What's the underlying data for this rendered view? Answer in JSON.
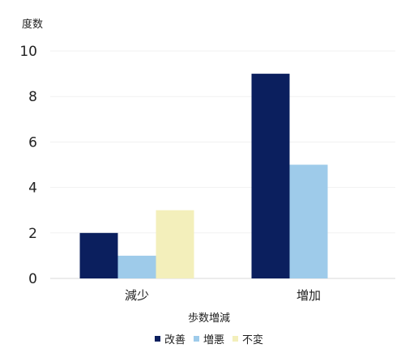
{
  "chart_data": {
    "type": "bar",
    "ylabel": "度数",
    "xlabel": "歩数増減",
    "categories": [
      "減少",
      "増加"
    ],
    "ylim": [
      0,
      10
    ],
    "yticks": [
      0,
      2,
      4,
      6,
      8,
      10
    ],
    "grid": true,
    "legend_position": "bottom",
    "series": [
      {
        "name": "改善",
        "color": "#0b1f5e",
        "values": [
          2,
          9
        ]
      },
      {
        "name": "増悪",
        "color": "#9ecbea",
        "values": [
          1,
          5
        ]
      },
      {
        "name": "不変",
        "color": "#f3efbb",
        "values": [
          3,
          0
        ]
      }
    ]
  }
}
